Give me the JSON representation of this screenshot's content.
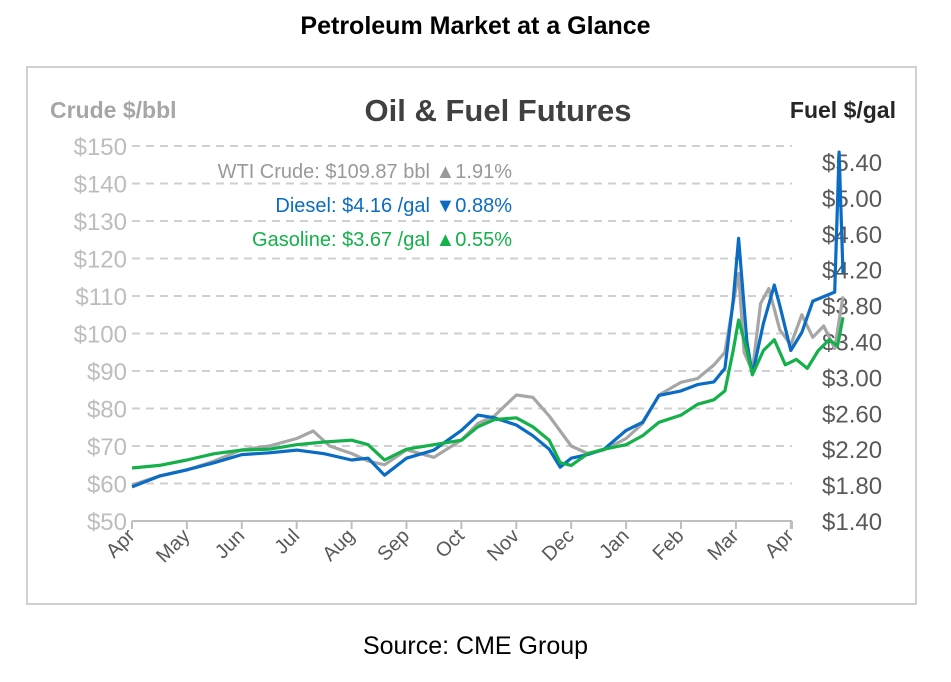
{
  "title": "Petroleum Market at a Glance",
  "source": "Source: CME Group",
  "chart_data": {
    "type": "line",
    "title": "Oil & Fuel Futures",
    "ylabel_left": "Crude $/bbl",
    "ylabel_right": "Fuel $/gal",
    "ylim_left": [
      50,
      150
    ],
    "ylim_right": [
      1.4,
      5.4
    ],
    "left_ticks": [
      "$50",
      "$60",
      "$70",
      "$80",
      "$90",
      "$100",
      "$110",
      "$120",
      "$130",
      "$140",
      "$150"
    ],
    "right_ticks": [
      "$1.40",
      "$1.80",
      "$2.20",
      "$2.60",
      "$3.00",
      "$3.40",
      "$3.80",
      "$4.20",
      "$4.60",
      "$5.00",
      "$5.40"
    ],
    "x_ticks": [
      "Apr",
      "May",
      "Jun",
      "Jul",
      "Aug",
      "Sep",
      "Oct",
      "Nov",
      "Dec",
      "Jan",
      "Feb",
      "Mar",
      "Apr"
    ],
    "grid": true,
    "legend": [
      {
        "label": "WTI Crude: $109.87 bbl",
        "change": "▲1.91%",
        "color": "#999999"
      },
      {
        "label": "Diesel:   $4.16 /gal",
        "change": "▼0.88%",
        "color": "#0b6cc4"
      },
      {
        "label": "Gasoline:   $3.67 /gal",
        "change": "▲0.55%",
        "color": "#14b04a"
      }
    ],
    "series": [
      {
        "name": "WTI Crude",
        "axis": "left",
        "color": "#a6a6a6",
        "x": [
          0,
          0.5,
          1,
          1.5,
          2,
          2.5,
          3,
          3.3,
          3.6,
          4,
          4.3,
          4.6,
          5,
          5.5,
          6,
          6.3,
          6.6,
          7,
          7.3,
          7.6,
          7.8,
          8,
          8.3,
          8.6,
          9,
          9.3,
          9.6,
          10,
          10.3,
          10.6,
          10.8,
          10.95,
          11.05,
          11.15,
          11.3,
          11.45,
          11.6,
          11.8,
          12,
          12.2,
          12.4,
          12.6,
          12.8,
          12.95
        ],
        "y": [
          59.6,
          62,
          63.6,
          66,
          69,
          70,
          72,
          74,
          70,
          68,
          66,
          65,
          69,
          67,
          71.6,
          76,
          78,
          83.6,
          83,
          78,
          74,
          70,
          68,
          69,
          72,
          76,
          83.6,
          87,
          88,
          91.6,
          95,
          108,
          116,
          95,
          90,
          108,
          112,
          101,
          97,
          105,
          99,
          102,
          96,
          109.9
        ]
      },
      {
        "name": "Diesel",
        "axis": "right",
        "color": "#0b6cc4",
        "x": [
          0,
          0.5,
          1,
          1.5,
          2,
          2.5,
          3,
          3.5,
          4,
          4.3,
          4.6,
          5,
          5.5,
          6,
          6.3,
          6.6,
          7,
          7.3,
          7.6,
          7.8,
          8,
          8.3,
          8.6,
          9,
          9.3,
          9.6,
          10,
          10.3,
          10.6,
          10.8,
          10.95,
          11.05,
          11.2,
          11.3,
          11.5,
          11.7,
          11.8,
          12,
          12.2,
          12.4,
          12.6,
          12.8,
          12.88,
          12.95
        ],
        "y": [
          1.78,
          1.9,
          1.97,
          2.05,
          2.14,
          2.16,
          2.19,
          2.15,
          2.08,
          2.1,
          1.91,
          2.1,
          2.19,
          2.41,
          2.58,
          2.55,
          2.47,
          2.35,
          2.2,
          2.0,
          2.1,
          2.14,
          2.2,
          2.41,
          2.5,
          2.8,
          2.85,
          2.92,
          2.95,
          3.1,
          3.86,
          4.55,
          3.4,
          3.03,
          3.6,
          4.03,
          3.8,
          3.3,
          3.5,
          3.85,
          3.9,
          3.95,
          5.51,
          4.16
        ]
      },
      {
        "name": "Gasoline",
        "axis": "right",
        "color": "#14b04a",
        "x": [
          0,
          0.5,
          1,
          1.5,
          2,
          2.5,
          3,
          3.5,
          4,
          4.3,
          4.6,
          5,
          5.5,
          6,
          6.3,
          6.6,
          7,
          7.3,
          7.6,
          7.8,
          8,
          8.3,
          8.6,
          9,
          9.3,
          9.6,
          10,
          10.3,
          10.6,
          10.8,
          10.95,
          11.05,
          11.2,
          11.3,
          11.5,
          11.7,
          11.9,
          12.1,
          12.3,
          12.5,
          12.7,
          12.85,
          12.95
        ],
        "y": [
          1.99,
          2.02,
          2.08,
          2.15,
          2.19,
          2.2,
          2.25,
          2.28,
          2.3,
          2.25,
          2.08,
          2.2,
          2.25,
          2.3,
          2.45,
          2.53,
          2.55,
          2.45,
          2.3,
          2.05,
          2.02,
          2.15,
          2.2,
          2.25,
          2.35,
          2.5,
          2.58,
          2.7,
          2.75,
          2.85,
          3.3,
          3.64,
          3.3,
          3.03,
          3.3,
          3.42,
          3.14,
          3.2,
          3.1,
          3.3,
          3.42,
          3.35,
          3.67
        ]
      }
    ]
  }
}
